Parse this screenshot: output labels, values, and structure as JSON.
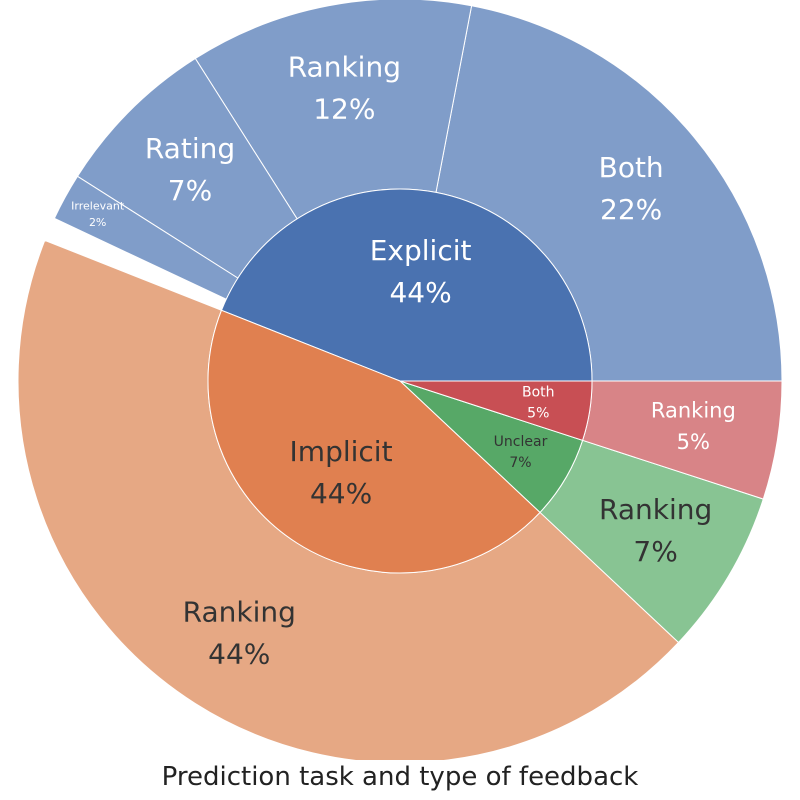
{
  "chart_data": {
    "type": "sunburst",
    "title": "Prediction task and type of feedback",
    "inner": [
      {
        "name": "Explicit",
        "value": 44,
        "label": "44%",
        "color": "#4a72b0",
        "text_color": "#ffffff"
      },
      {
        "name": "Unclear",
        "value": 7,
        "label": "7%",
        "color": "#57a867",
        "text_color": "#333333"
      },
      {
        "name": "Both",
        "value": 5,
        "label": "5%",
        "color": "#c84f54",
        "text_color": "#ffffff"
      },
      {
        "name": "Implicit",
        "value": 44,
        "label": "44%",
        "color": "#e08050",
        "text_color": "#333333"
      }
    ],
    "outer": [
      {
        "parent": "Explicit",
        "name": "Both",
        "value": 22,
        "label": "22%",
        "color": "#809dc9",
        "text_color": "#ffffff"
      },
      {
        "parent": "Explicit",
        "name": "Ranking",
        "value": 12,
        "label": "12%",
        "color": "#809dc9",
        "text_color": "#ffffff"
      },
      {
        "parent": "Explicit",
        "name": "Rating",
        "value": 7,
        "label": "7%",
        "color": "#809dc9",
        "text_color": "#ffffff"
      },
      {
        "parent": "Explicit",
        "name": "Irrelevant",
        "value": 2,
        "label": "2%",
        "color": "#809dc9",
        "text_color": "#ffffff"
      },
      {
        "parent": "Unclear",
        "name": "Ranking",
        "value": 7,
        "label": "7%",
        "color": "#88c493",
        "text_color": "#333333"
      },
      {
        "parent": "Both",
        "name": "Ranking",
        "value": 5,
        "label": "5%",
        "color": "#d88487",
        "text_color": "#ffffff"
      },
      {
        "parent": "Implicit",
        "name": "Ranking",
        "value": 44,
        "label": "44%",
        "color": "#e6a884",
        "text_color": "#333333"
      }
    ]
  }
}
